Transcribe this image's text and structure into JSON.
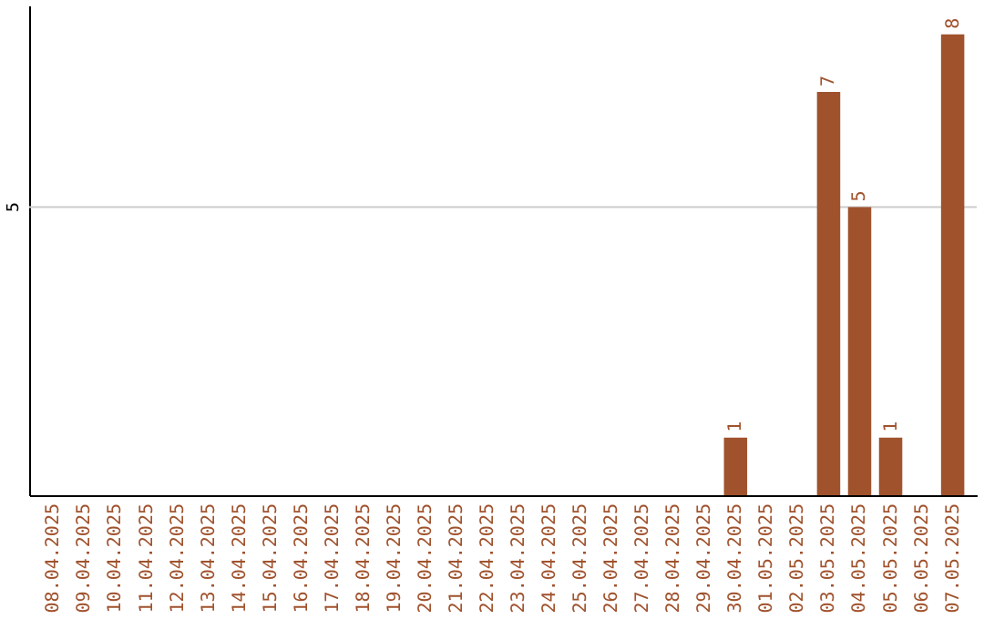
{
  "chart_data": {
    "type": "bar",
    "categories": [
      "08.04.2025",
      "09.04.2025",
      "10.04.2025",
      "11.04.2025",
      "12.04.2025",
      "13.04.2025",
      "14.04.2025",
      "15.04.2025",
      "16.04.2025",
      "17.04.2025",
      "18.04.2025",
      "19.04.2025",
      "20.04.2025",
      "21.04.2025",
      "22.04.2025",
      "23.04.2025",
      "24.04.2025",
      "25.04.2025",
      "26.04.2025",
      "27.04.2025",
      "28.04.2025",
      "29.04.2025",
      "30.04.2025",
      "01.05.2025",
      "02.05.2025",
      "03.05.2025",
      "04.05.2025",
      "05.05.2025",
      "06.05.2025",
      "07.05.2025"
    ],
    "values": [
      null,
      null,
      null,
      null,
      null,
      null,
      null,
      null,
      null,
      null,
      null,
      null,
      null,
      null,
      null,
      null,
      null,
      null,
      null,
      null,
      null,
      null,
      1,
      null,
      null,
      7,
      5,
      1,
      null,
      8
    ],
    "data_labels": true,
    "color": "#a0522d",
    "ylim": [
      0,
      8.5
    ],
    "ref_lines": [
      {
        "axis": "y",
        "value": 5,
        "label": "5",
        "color": "#cccccc"
      }
    ]
  }
}
